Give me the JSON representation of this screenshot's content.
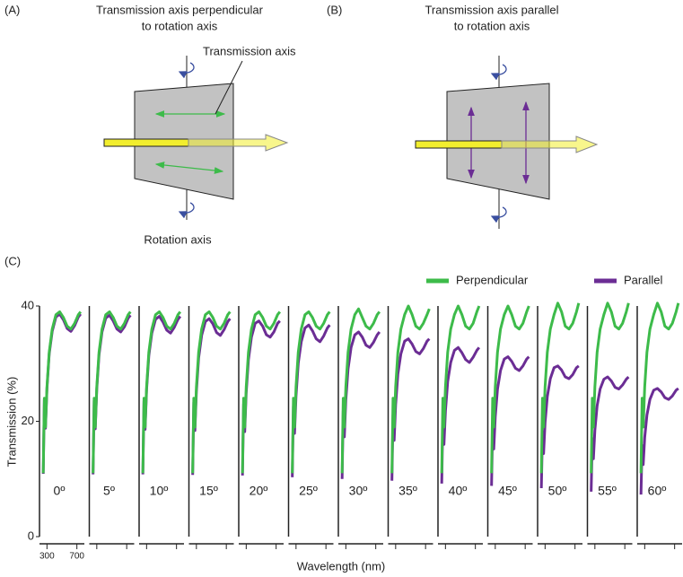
{
  "panel_a": {
    "label": "(A)",
    "title_lines": [
      "Transmission axis perpendicular",
      "to rotation axis"
    ],
    "transmission_label": "Transmission axis",
    "rotation_label": "Rotation axis"
  },
  "panel_b": {
    "label": "(B)",
    "title_lines": [
      "Transmission axis parallel",
      "to rotation axis"
    ]
  },
  "panel_c": {
    "label": "(C)"
  },
  "chart_data": {
    "type": "line",
    "ylabel": "Transmission (%)",
    "xlabel": "Wavelength (nm)",
    "ylim": [
      0,
      40
    ],
    "yticks": [
      0,
      20,
      40
    ],
    "xlim": [
      200,
      800
    ],
    "xticks": [
      300,
      700
    ],
    "x": [
      250,
      265,
      280,
      300,
      330,
      370,
      420,
      470,
      520,
      570,
      620,
      670,
      720,
      750
    ],
    "series": [
      {
        "name": "Perpendicular",
        "color": "#3dbb4a"
      },
      {
        "name": "Parallel",
        "color": "#6b2d94"
      }
    ],
    "panels": [
      {
        "label": "0º",
        "values": [
          [
            11,
            24,
            19,
            26,
            32,
            36,
            38.5,
            39,
            38,
            36.5,
            36,
            37,
            38.5,
            39
          ],
          [
            10.9,
            23.8,
            18.8,
            25.7,
            31.7,
            35.6,
            38.1,
            38.6,
            37.6,
            36.1,
            35.6,
            36.6,
            38.1,
            38.6
          ]
        ]
      },
      {
        "label": "5º",
        "values": [
          [
            11,
            24,
            19,
            26,
            32,
            36,
            38.5,
            39,
            38,
            36.5,
            36,
            37,
            38.5,
            39
          ],
          [
            10.8,
            23.6,
            18.7,
            25.6,
            31.5,
            35.5,
            37.9,
            38.4,
            37.4,
            36.0,
            35.5,
            36.4,
            37.9,
            38.4
          ]
        ]
      },
      {
        "label": "10º",
        "values": [
          [
            11,
            24,
            19,
            26,
            32,
            36,
            38.5,
            39,
            38,
            36.5,
            36,
            37,
            38.5,
            39
          ],
          [
            10.8,
            23.5,
            18.6,
            25.5,
            31.4,
            35.3,
            37.7,
            38.2,
            37.2,
            35.8,
            35.3,
            36.3,
            37.7,
            38.2
          ]
        ]
      },
      {
        "label": "15º",
        "values": [
          [
            11,
            24,
            19,
            26,
            32,
            36,
            38.5,
            39,
            38,
            36.5,
            36,
            37,
            38.5,
            39
          ],
          [
            10.7,
            23.3,
            18.4,
            25.2,
            31.0,
            34.9,
            37.3,
            37.8,
            36.9,
            35.4,
            34.9,
            35.9,
            37.3,
            37.8
          ]
        ]
      },
      {
        "label": "20º",
        "values": [
          [
            11,
            24,
            19,
            26,
            32,
            36,
            38.5,
            39,
            38,
            36.5,
            36,
            37,
            38.5,
            39
          ],
          [
            10.6,
            23.0,
            18.2,
            25.0,
            30.7,
            34.6,
            37.0,
            37.4,
            36.5,
            35.0,
            34.6,
            35.5,
            37.0,
            37.4
          ]
        ]
      },
      {
        "label": "25º",
        "values": [
          [
            11,
            24,
            19,
            26,
            32,
            36,
            38.5,
            39,
            38,
            36.5,
            36,
            37,
            38.5,
            39
          ],
          [
            10.3,
            22.6,
            17.9,
            24.4,
            30.1,
            33.8,
            36.2,
            36.7,
            35.7,
            34.3,
            33.8,
            34.8,
            36.2,
            36.7
          ]
        ]
      },
      {
        "label": "30º",
        "values": [
          [
            11,
            24,
            19,
            26,
            32,
            36,
            38.5,
            39.5,
            38,
            36.5,
            36,
            37,
            38.5,
            39
          ],
          [
            10.0,
            21.8,
            17.3,
            23.7,
            29.1,
            32.8,
            35.0,
            35.5,
            34.6,
            33.2,
            32.8,
            33.7,
            35.0,
            35.5
          ]
        ]
      },
      {
        "label": "35º",
        "values": [
          [
            11,
            24,
            19,
            26,
            32,
            36,
            38.5,
            40,
            38.5,
            36.5,
            36,
            37,
            38.5,
            39.5
          ],
          [
            9.7,
            21.1,
            16.7,
            22.9,
            28.2,
            31.7,
            33.9,
            34.3,
            33.4,
            32.1,
            31.7,
            32.6,
            33.9,
            34.3
          ]
        ]
      },
      {
        "label": "40º",
        "values": [
          [
            11,
            24,
            19,
            26,
            32,
            36,
            38.5,
            40,
            38.5,
            36.5,
            36,
            37,
            39,
            40
          ],
          [
            9.2,
            20.2,
            16.0,
            21.8,
            26.9,
            30.2,
            32.3,
            32.8,
            31.9,
            30.7,
            30.2,
            31.1,
            32.3,
            32.8
          ]
        ]
      },
      {
        "label": "45º",
        "values": [
          [
            11,
            24,
            19,
            26,
            32,
            36,
            38.5,
            40,
            38.5,
            36.5,
            36,
            37,
            39,
            40
          ],
          [
            8.8,
            19.2,
            15.2,
            20.8,
            25.6,
            28.8,
            30.8,
            31.2,
            30.4,
            29.2,
            28.8,
            29.6,
            30.8,
            31.2
          ]
        ]
      },
      {
        "label": "50º",
        "values": [
          [
            11,
            24,
            19,
            26,
            32,
            36,
            38.5,
            40.5,
            39,
            36.5,
            36,
            37,
            39,
            40.5
          ],
          [
            8.4,
            18.2,
            14.4,
            19.8,
            24.3,
            27.4,
            29.3,
            29.6,
            28.9,
            27.7,
            27.4,
            28.1,
            29.3,
            29.6
          ]
        ]
      },
      {
        "label": "55º",
        "values": [
          [
            11,
            24,
            19,
            26,
            32,
            36,
            38.5,
            40.5,
            39,
            36.5,
            36,
            37,
            39,
            40.5
          ],
          [
            7.8,
            17.0,
            13.5,
            18.5,
            22.7,
            25.6,
            27.3,
            27.7,
            27.0,
            25.9,
            25.6,
            26.3,
            27.3,
            27.7
          ]
        ]
      },
      {
        "label": "60º",
        "values": [
          [
            11,
            24,
            19,
            26,
            32,
            36,
            38.5,
            40.5,
            39,
            36.5,
            36,
            37,
            39,
            40.5
          ],
          [
            7.3,
            15.8,
            12.5,
            17.2,
            21.1,
            23.8,
            25.4,
            25.7,
            25.1,
            24.1,
            23.8,
            24.4,
            25.4,
            25.7
          ]
        ]
      }
    ]
  }
}
